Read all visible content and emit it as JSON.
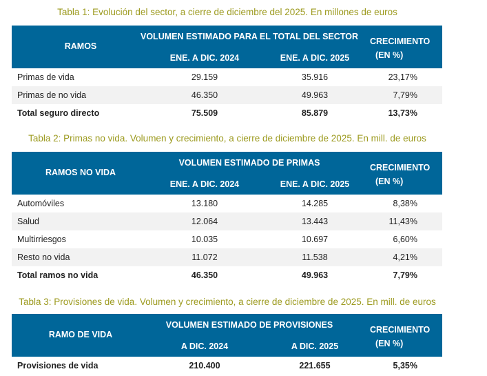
{
  "colors": {
    "header_bg": "#006699",
    "title": "#9c9a1e",
    "alt_row": "#f2f2f2"
  },
  "tables": [
    {
      "title": "Tabla 1: Evolución del sector, a cierre de diciembre del 2025. En millones de euros",
      "header": {
        "ramo": "RAMOS",
        "volumen": "VOLUMEN ESTIMADO PARA EL TOTAL DEL SECTOR",
        "y1": "ENE. A DIC. 2024",
        "y2": "ENE. A DIC. 2025",
        "crec1": "CRECIMIENTO",
        "crec2": "(EN %)"
      },
      "rows": [
        {
          "label": "Primas de vida",
          "v1": "29.159",
          "v2": "35.916",
          "g": "23,17%"
        },
        {
          "label": "Primas de no vida",
          "v1": "46.350",
          "v2": "49.963",
          "g": "7,79%"
        },
        {
          "label": "Total seguro directo",
          "v1": "75.509",
          "v2": "85.879",
          "g": "13,73%",
          "total": true
        }
      ]
    },
    {
      "title": "Tabla 2: Primas no vida. Volumen y crecimiento, a cierre de diciembre de 2025. En mill. de euros",
      "header": {
        "ramo": "RAMOS NO VIDA",
        "volumen": "VOLUMEN ESTIMADO DE PRIMAS",
        "y1": "ENE. A DIC. 2024",
        "y2": "ENE. A DIC. 2025",
        "crec1": "CRECIMIENTO",
        "crec2": "(EN %)"
      },
      "rows": [
        {
          "label": "Automóviles",
          "v1": "13.180",
          "v2": "14.285",
          "g": "8,38%"
        },
        {
          "label": "Salud",
          "v1": "12.064",
          "v2": "13.443",
          "g": "11,43%"
        },
        {
          "label": "Multirriesgos",
          "v1": "10.035",
          "v2": "10.697",
          "g": "6,60%"
        },
        {
          "label": "Resto no vida",
          "v1": "11.072",
          "v2": "11.538",
          "g": "4,21%"
        },
        {
          "label": "Total ramos no vida",
          "v1": "46.350",
          "v2": "49.963",
          "g": "7,79%",
          "total": true
        }
      ]
    },
    {
      "title": "Tabla 3: Provisiones de vida. Volumen y crecimiento, a cierre de diciembre de 2025. En mill. de euros",
      "header": {
        "ramo": "RAMO DE VIDA",
        "volumen": "VOLUMEN ESTIMADO DE PROVISIONES",
        "y1": "A DIC. 2024",
        "y2": "A DIC. 2025",
        "crec1": "CRECIMIENTO",
        "crec2": "(EN %)"
      },
      "rows": [
        {
          "label": "Provisiones de vida",
          "v1": "210.400",
          "v2": "221.655",
          "g": "5,35%",
          "total": true
        }
      ]
    }
  ]
}
